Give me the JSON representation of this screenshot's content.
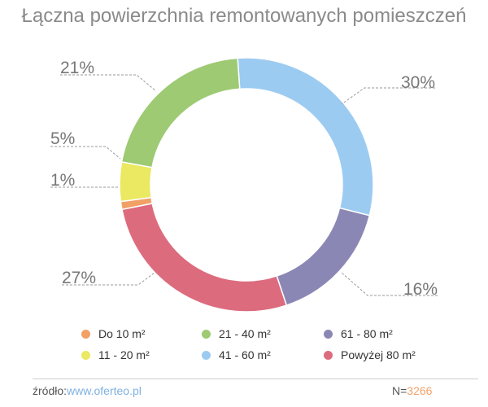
{
  "chart_data": {
    "type": "pie",
    "title": "Łączna powierzchnia remontowanych pomieszczeń",
    "slices": [
      {
        "label": "41 - 60 m²",
        "value": 30,
        "label_text": "30%",
        "color": "#9ccbf1"
      },
      {
        "label": "61 - 80 m²",
        "value": 16,
        "label_text": "16%",
        "color": "#8b87b5"
      },
      {
        "label": "Powyżej 80 m²",
        "value": 27,
        "label_text": "27%",
        "color": "#dd6b7e"
      },
      {
        "label": "Do 10 m²",
        "value": 1,
        "label_text": "1%",
        "color": "#f1a066"
      },
      {
        "label": "11 - 20 m²",
        "value": 5,
        "label_text": "5%",
        "color": "#ebe862"
      },
      {
        "label": "21 - 40 m²",
        "value": 21,
        "label_text": "21%",
        "color": "#9dca73"
      }
    ],
    "legend_order": [
      "Do 10 m²",
      "21 - 40 m²",
      "61 - 80 m²",
      "11 - 20 m²",
      "41 - 60 m²",
      "Powyżej 80 m²"
    ],
    "legend_position": "bottom"
  },
  "footer": {
    "source_label": "źródło:",
    "source_link": "www.oferteo.pl",
    "n_label": "N=",
    "n_value": "3266"
  }
}
